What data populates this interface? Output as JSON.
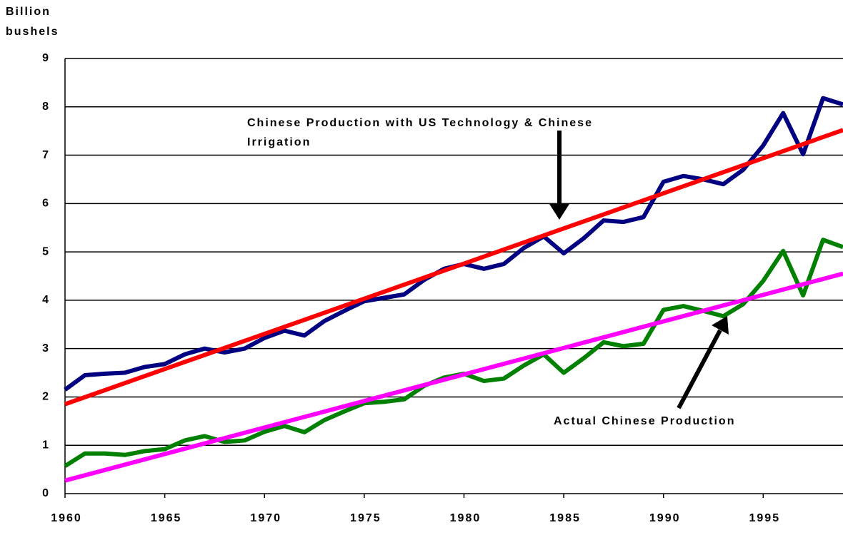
{
  "chart_data": {
    "type": "line",
    "ylabel": [
      "Billion",
      "bushels"
    ],
    "annotations": [
      {
        "lines": [
          "Chinese Production with US Technology & Chinese",
          "Irrigation"
        ]
      },
      {
        "lines": [
          "Actual Chinese Production"
        ]
      }
    ],
    "series": [
      {
        "color": "#000080",
        "x": [
          1960,
          1961,
          1962,
          1963,
          1964,
          1965,
          1966,
          1967,
          1968,
          1969,
          1970,
          1971,
          1972,
          1973,
          1974,
          1975,
          1976,
          1977,
          1978,
          1979,
          1980,
          1981,
          1982,
          1983,
          1984,
          1985,
          1986,
          1987,
          1988,
          1989,
          1990,
          1991,
          1992,
          1993,
          1994,
          1995,
          1996,
          1997,
          1998,
          1999
        ],
        "values": [
          2.15,
          2.45,
          2.48,
          2.5,
          2.62,
          2.68,
          2.88,
          3.0,
          2.92,
          3.0,
          3.22,
          3.37,
          3.27,
          3.57,
          3.78,
          3.98,
          4.05,
          4.12,
          4.42,
          4.65,
          4.75,
          4.65,
          4.75,
          5.08,
          5.32,
          4.97,
          5.28,
          5.65,
          5.62,
          5.72,
          6.45,
          6.57,
          6.5,
          6.4,
          6.7,
          7.2,
          7.87,
          7.02,
          8.18,
          8.05
        ]
      },
      {
        "color": "#008000",
        "x": [
          1960,
          1961,
          1962,
          1963,
          1964,
          1965,
          1966,
          1967,
          1968,
          1969,
          1970,
          1971,
          1972,
          1973,
          1974,
          1975,
          1976,
          1977,
          1978,
          1979,
          1980,
          1981,
          1982,
          1983,
          1984,
          1985,
          1986,
          1987,
          1988,
          1989,
          1990,
          1991,
          1992,
          1993,
          1994,
          1995,
          1996,
          1997,
          1998,
          1999
        ],
        "values": [
          0.57,
          0.83,
          0.83,
          0.8,
          0.88,
          0.92,
          1.1,
          1.19,
          1.07,
          1.1,
          1.28,
          1.4,
          1.27,
          1.52,
          1.7,
          1.87,
          1.9,
          1.95,
          2.23,
          2.4,
          2.48,
          2.33,
          2.38,
          2.65,
          2.88,
          2.5,
          2.8,
          3.13,
          3.05,
          3.1,
          3.8,
          3.88,
          3.78,
          3.67,
          3.92,
          4.4,
          5.02,
          4.1,
          5.25,
          5.1
        ]
      },
      {
        "color": "#ff0000",
        "x": [
          1960,
          1999
        ],
        "values": [
          1.85,
          7.52
        ]
      },
      {
        "color": "#ff00ff",
        "x": [
          1960,
          1999
        ],
        "values": [
          0.27,
          4.55
        ]
      }
    ],
    "xlim": [
      1960,
      1999
    ],
    "xticks": [
      1960,
      1965,
      1970,
      1975,
      1980,
      1985,
      1990,
      1995
    ],
    "ylim": [
      0,
      9
    ],
    "yticks": [
      0,
      1,
      2,
      3,
      4,
      5,
      6,
      7,
      8,
      9
    ],
    "grid": true
  }
}
